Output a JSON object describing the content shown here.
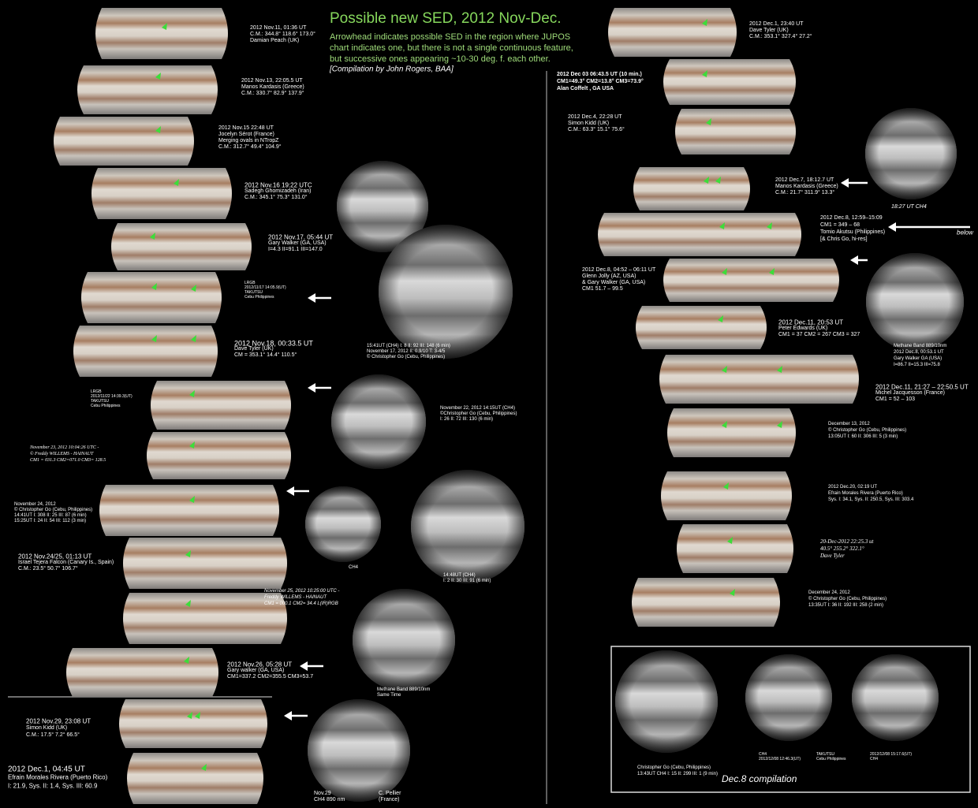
{
  "header": {
    "title": "Possible new SED, 2012 Nov-Dec.",
    "description": [
      "Arrowhead indicates possible SED in the region where JUPOS",
      "chart indicates one, but there is not a single continuous feature,",
      "but successive ones appearing ~10-30 deg. f. each other."
    ],
    "credit": "[Compilation by John Rogers, BAA]"
  },
  "left_captions": [
    {
      "lines": [
        "2012 Nov.11, 01:36 UT",
        "C.M.:  344.8°  118.6°  173.0°",
        "Damian Peach (UK)"
      ]
    },
    {
      "lines": [
        "2012 Nov.13, 22:05.5 UT",
        "Manos Kardasis (Greece)",
        "C.M.:  330.7°   82.9°   137.9°"
      ]
    },
    {
      "lines": [
        "2012 Nov.15   22:48 UT",
        "Jocelyn Sérot (France)",
        "Merging ovals in NTropZ",
        "C.M.:  312.7°   49.4°   104.9°"
      ]
    },
    {
      "lines": [
        "2012 Nov.16  19:22  UTC",
        "Sadegh Ghomizadeh (Iran)",
        "C.M.:  345.1°   75.3°   131.0°"
      ]
    },
    {
      "lines": [
        "2012 Nov.17, 05:44 UT",
        "Gary Walker (GA, USA)",
        "I=4.3  II=91.1  III=147.0"
      ]
    },
    {
      "lines": [
        "LRGB",
        "2012/11/17 14:05.9(UT)",
        "TAKUTSU",
        "Cebu Philippines"
      ]
    },
    {
      "lines": [
        "2012 Nov.18, 00:33.5 UT",
        "Dave Tyler (UK)",
        "CM =  353.1°   14.4°   110.5°"
      ]
    },
    {
      "lines": [
        "LRGB",
        "2012/11/22 14:39.3(UT)",
        "TAKUTSU",
        "Cebu Philippines"
      ]
    },
    {
      "lines": [
        "November 23, 2012  10:04:26  UTC -",
        "© Freddy WILLEMS  -  HAINAUT",
        "CM1 = 031.3  CM2=071.0  CM3= 128.5"
      ]
    },
    {
      "lines": [
        "November 24, 2012",
        "© Christopher Go  (Cebu, Philippines)",
        "14:41UT  I: 308  II: 25  III: 87  (6 min)",
        "15:25UT  I: 24  II: 54  III: 112  (3 min)"
      ]
    },
    {
      "lines": [
        "2012 Nov.24/25, 01:13 UT",
        "Israel Tejera Falcon (Canary Is., Spain)",
        "C.M.:   23.5°    50.7°    106.7°"
      ]
    },
    {
      "lines": [
        "November 25, 2012  10:25:00  UTC -",
        "Freddy WILLEMS  -  HAINAUT",
        "CM1 = 000.1  CM2= 34.4  L(IR)RGB"
      ]
    },
    {
      "lines": [
        "2012 Nov.26, 05:28 UT",
        "Gary walker (GA, USA)",
        "CM1=337.2  CM2=355.5  CM3=53.7"
      ]
    },
    {
      "lines": [
        "2012 Nov.29, 23:08 UT",
        "Simon Kidd (UK)",
        "C.M.:    17.5°     7.2°     66.5°"
      ]
    },
    {
      "lines": [
        "2012 Dec.1, 04:45 UT",
        "Efrain Morales Rivera (Puerto Rico)",
        "I: 21.9, Sys. II: 1.4, Sys. III: 60.9"
      ]
    }
  ],
  "right_captions": [
    {
      "lines": [
        "2012 Dec.1, 23:40 UT",
        "Dave Tyler (UK)",
        "C.M.:   353.1°   327.4°   27.2°"
      ]
    },
    {
      "lines": [
        "2012 Dec 03 06:43.5 UT (10 min.)",
        "CM1=49.3°   CM2=13.8°   CM3=73.9°",
        "Alan Coffelt , GA USA"
      ]
    },
    {
      "lines": [
        "2012 Dec.4, 22:28 UT",
        "Simon Kidd (UK)",
        "C.M.:   63.3°   15.1°   75.6°"
      ]
    },
    {
      "lines": [
        "2012 Dec.7, 18:12.7 UT",
        "Manos Kardasis (Greece)",
        "C.M.:  21.7°  311.9°  13.3°"
      ]
    },
    {
      "lines": [
        "2012 Dec.8, 12:59–15:09",
        "CM1 = 349 – 68",
        "Tomio Akutsu (Philippines)",
        "[& Chris Go, hi-res]"
      ]
    },
    {
      "lines": [
        "2012 Dec.8, 04:52 – 06:11 UT",
        "Glenn Jolly (AZ, USA)",
        "  & Gary Walker (GA, USA)",
        "CM1 51.7 – 99.5"
      ]
    },
    {
      "lines": [
        "2012 Dec.11, 20:53 UT",
        "Peter Edwards (UK)",
        "CM1 = 37  CM2 = 267  CM3 = 327"
      ]
    },
    {
      "lines": [
        "2012 Dec.11, 21:27 – 22:50.5 UT",
        "Michel Jacquesson (France)",
        "CM1 = 52 – 103"
      ]
    },
    {
      "lines": [
        "December 13, 2012",
        "© Christopher Go  (Cebu, Philippines)",
        "13:05UT  I: 60  II: 306  III: 5  (3 min)"
      ]
    },
    {
      "lines": [
        "2012 Dec.20, 02:19 UT",
        "Efrain Morales Rivera (Puerto Rico)",
        "Sys. I: 34.1, Sys. II: 250.5, Sys. III: 303.4"
      ]
    },
    {
      "lines": [
        "20-Dec-2012   22:25.3 ut",
        "40.5°    255.2°    322.1°",
        "Dave Tyler"
      ]
    },
    {
      "lines": [
        "December 24, 2012",
        "© Christopher Go  (Cebu, Philippines)",
        "13:35UT  I: 36  II: 192  III: 258  (2 min)"
      ]
    }
  ],
  "disk_captions": [
    {
      "lines": [
        "15:41UT (CH4)  I: 8  II: 92  III: 148  (6 min)",
        "November 17, 2012  II: 0.9/10  T: 3-4/5",
        "© Christopher Go  (Cebu, Philippines)"
      ]
    },
    {
      "lines": [
        "November 22, 2012   14:15UT  (CH4)",
        "©Christopher Go  (Cebu, Philippines)",
        "I: 26  II: 72  III: 130  (6 min)"
      ]
    },
    {
      "lines": [
        "CH4"
      ]
    },
    {
      "lines": [
        "14:48UT (CH4)",
        "I: 2  II: 30  III: 91  (6 min)"
      ]
    },
    {
      "lines": [
        "Methane Band  889/10nm",
        "Same Time"
      ]
    },
    {
      "lines": [
        "Nov.29",
        "CH4 890 nm"
      ]
    },
    {
      "lines": [
        "C. Pellier",
        "(France)"
      ]
    },
    {
      "lines": [
        "18:27 UT CH4"
      ]
    },
    {
      "lines": [
        "Methane Band  889/10nm",
        "2012 Dec.8, 00:53.1 UT",
        "Gary Walker     GA  (USA)",
        "I=86.7  II=15.3  III=75.8"
      ]
    },
    {
      "lines": [
        "below"
      ]
    }
  ],
  "compilation": {
    "caption": [
      "Christopher Go  (Cebu, Philippines)",
      "13:43UT  CH4  I: 15  II: 299  III: 1  (9 min)"
    ],
    "label": "Dec.8 compilation",
    "sub_captions": [
      {
        "lines": [
          "CH4",
          "2012/12/08 12:46.3(UT)"
        ]
      },
      {
        "lines": [
          "TAKUTSU",
          "Cebu Philippines"
        ]
      },
      {
        "lines": [
          "2012/12/08 15:17.6(UT)",
          "CH4"
        ]
      }
    ]
  }
}
